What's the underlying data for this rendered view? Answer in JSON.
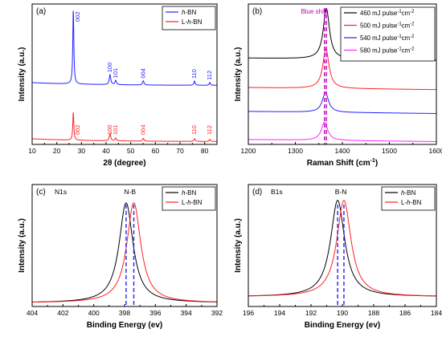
{
  "chart_data": [
    {
      "panel": "(a)",
      "type": "line",
      "xlabel": "2θ (degree)",
      "ylabel": "Intensity (a.u.)",
      "xlim": [
        10,
        85
      ],
      "xticks": [
        10,
        20,
        30,
        40,
        50,
        60,
        70,
        80
      ],
      "yticks_shown": false,
      "grid": false,
      "legend_position": "top-right",
      "series": [
        {
          "name": "h-BN",
          "name_html": "<tspan font-style=\"italic\">h</tspan>-BN",
          "color": "#2020ff",
          "offset": 0.42,
          "peaks": [
            {
              "x": 26.7,
              "h": 0.53,
              "w": 0.25,
              "label": "002"
            },
            {
              "x": 41.6,
              "h": 0.07,
              "w": 0.35,
              "label": "100"
            },
            {
              "x": 43.9,
              "h": 0.03,
              "w": 0.35,
              "label": "101"
            },
            {
              "x": 55.1,
              "h": 0.03,
              "w": 0.35,
              "label": "004"
            },
            {
              "x": 75.9,
              "h": 0.03,
              "w": 0.3,
              "label": "110"
            },
            {
              "x": 82.1,
              "h": 0.02,
              "w": 0.3,
              "label": "112"
            }
          ]
        },
        {
          "name": "L-h-BN",
          "name_html": "L-<tspan font-style=\"italic\">h</tspan>-BN",
          "color": "#ff2020",
          "offset": 0.02,
          "peaks": [
            {
              "x": 26.7,
              "h": 0.2,
              "w": 0.25,
              "label": "002"
            },
            {
              "x": 41.6,
              "h": 0.05,
              "w": 0.35,
              "label": "100"
            },
            {
              "x": 43.9,
              "h": 0.02,
              "w": 0.35,
              "label": "101"
            },
            {
              "x": 55.1,
              "h": 0.02,
              "w": 0.35,
              "label": "004"
            },
            {
              "x": 75.9,
              "h": 0.02,
              "w": 0.3,
              "label": "110"
            },
            {
              "x": 82.1,
              "h": 0.015,
              "w": 0.3,
              "label": "112"
            }
          ]
        }
      ]
    },
    {
      "panel": "(b)",
      "type": "line",
      "xlabel": "Raman Shift (cm⁻¹)",
      "ylabel": "Intensity (a.u.)",
      "xlim": [
        1200,
        1600
      ],
      "xticks": [
        1200,
        1300,
        1400,
        1500,
        1600
      ],
      "yticks_shown": false,
      "grid": false,
      "legend_position": "top-right",
      "annotation": "Blue shift",
      "annotation_color": "#c000c0",
      "dashed_lines_x": [
        1362,
        1366
      ],
      "series": [
        {
          "name": "460 mJ pulse⁻¹cm⁻²",
          "color": "#000000",
          "offset": 0.6,
          "peaks": [
            {
              "x": 1366,
              "h": 0.36,
              "w": 8
            }
          ]
        },
        {
          "name": "500 mJ pulse⁻¹cm⁻²",
          "color": "#ff2020",
          "offset": 0.39,
          "peaks": [
            {
              "x": 1365,
              "h": 0.28,
              "w": 8
            }
          ]
        },
        {
          "name": "540 mJ pulse⁻¹cm⁻²",
          "color": "#2020ff",
          "offset": 0.22,
          "peaks": [
            {
              "x": 1364,
              "h": 0.14,
              "w": 8
            }
          ]
        },
        {
          "name": "580 mJ pulse⁻¹cm⁻²",
          "color": "#ff20ff",
          "offset": 0.02,
          "peaks": [
            {
              "x": 1362,
              "h": 0.13,
              "w": 8
            }
          ]
        }
      ]
    },
    {
      "panel": "(c)",
      "type": "line",
      "inner_label": "N1s",
      "peak_label": "N-B",
      "xlabel": "Binding Energy (ev)",
      "ylabel": "Intensity (a.u.)",
      "xlim": [
        404,
        392
      ],
      "xticks": [
        404,
        402,
        400,
        398,
        396,
        394,
        392
      ],
      "yticks_shown": false,
      "grid": false,
      "legend_position": "top-right",
      "dashed_lines_x": [
        397.9,
        397.4
      ],
      "series": [
        {
          "name": "h-BN",
          "name_html": "<tspan font-style=\"italic\">h</tspan>-BN",
          "color": "#000000",
          "offset": 0.03,
          "peaks": [
            {
              "x": 397.9,
              "h": 0.82,
              "w": 0.55
            }
          ]
        },
        {
          "name": "L-h-BN",
          "name_html": "L-<tspan font-style=\"italic\">h</tspan>-BN",
          "color": "#ff2020",
          "offset": 0.03,
          "peaks": [
            {
              "x": 397.4,
              "h": 0.82,
              "w": 0.55
            }
          ]
        }
      ]
    },
    {
      "panel": "(d)",
      "type": "line",
      "inner_label": "B1s",
      "peak_label": "B-N",
      "xlabel": "Binding Energy (ev)",
      "ylabel": "Intensity (a.u.)",
      "xlim": [
        196,
        184
      ],
      "xticks": [
        196,
        194,
        192,
        190,
        188,
        186,
        184
      ],
      "yticks_shown": false,
      "grid": false,
      "legend_position": "top-right",
      "dashed_lines_x": [
        190.3,
        189.9
      ],
      "series": [
        {
          "name": "h-BN",
          "name_html": "<tspan font-style=\"italic\">h</tspan>-BN",
          "color": "#000000",
          "offset": 0.08,
          "peaks": [
            {
              "x": 190.3,
              "h": 0.79,
              "w": 0.55
            }
          ]
        },
        {
          "name": "L-h-BN",
          "name_html": "L-<tspan font-style=\"italic\">h</tspan>-BN",
          "color": "#ff2020",
          "offset": 0.08,
          "peaks": [
            {
              "x": 189.9,
              "h": 0.79,
              "w": 0.55
            }
          ]
        }
      ]
    }
  ]
}
